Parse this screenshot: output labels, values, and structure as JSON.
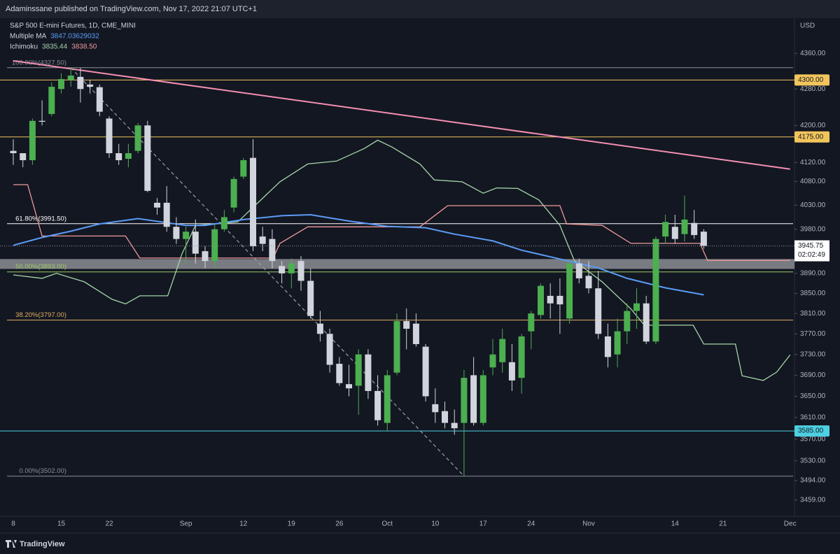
{
  "header": {
    "text": "Adaminssane published on TradingView.com, Nov 17, 2022 21:07 UTC+1"
  },
  "footer": {
    "brand": "TradingView"
  },
  "chart_data": {
    "type": "candlestick",
    "legend": [
      {
        "label": "S&P 500 E-mini Futures, 1D, CME_MINI"
      },
      {
        "label": "Multiple MA",
        "values": [
          {
            "text": "3847.03629032",
            "color": "#5b9cf6"
          }
        ]
      },
      {
        "label": "Ichimoku",
        "values": [
          {
            "text": "3835.44",
            "color": "#a5d6a7"
          },
          {
            "text": "3838.50",
            "color": "#ef9a9a"
          }
        ]
      }
    ],
    "y_unit": "USD",
    "categories": [
      "8",
      null,
      null,
      null,
      null,
      "15",
      null,
      null,
      null,
      null,
      "22",
      null,
      null,
      null,
      null,
      null,
      null,
      null,
      "Sep",
      null,
      null,
      null,
      null,
      null,
      "12",
      null,
      null,
      null,
      null,
      "19",
      null,
      null,
      null,
      null,
      "26",
      null,
      null,
      null,
      null,
      "Oct",
      null,
      null,
      null,
      null,
      "10",
      null,
      null,
      null,
      null,
      "17",
      null,
      null,
      null,
      null,
      "24",
      null,
      null,
      null,
      null,
      null,
      "Nov",
      null,
      null,
      null,
      null,
      null,
      null,
      null,
      null,
      "14",
      null,
      null,
      null,
      null,
      "21",
      null,
      null,
      null,
      null,
      null,
      null,
      "Dec"
    ],
    "open": [
      4145,
      4140,
      4125,
      4210,
      4225,
      4280,
      4300,
      4307,
      4290,
      4284,
      4215,
      4140,
      4128,
      4145,
      4200,
      4035,
      4035,
      3985,
      3960,
      3975,
      3935,
      3915,
      3980,
      4025,
      4090,
      4130,
      3965,
      3960,
      3905,
      3890,
      3915,
      3875,
      3790,
      3770,
      3712,
      3673,
      3670,
      3730,
      3660,
      3600,
      3695,
      3795,
      3790,
      3745,
      3635,
      3622,
      3600,
      3600,
      3690,
      3600,
      3705,
      3715,
      3715,
      3685,
      3775,
      3807,
      3845,
      3845,
      3800,
      3910,
      3885,
      3860,
      3765,
      3730,
      3775,
      3815,
      3830,
      3755,
      3965,
      3985,
      3970,
      3993,
      3975,
      null,
      null,
      null,
      null,
      null,
      null,
      null,
      null,
      null
    ],
    "high": [
      4170,
      4140,
      4215,
      4255,
      4295,
      4315,
      4327.5,
      4327,
      4300,
      4290,
      4220,
      4160,
      4160,
      4205,
      4210,
      4045,
      4070,
      4005,
      3985,
      4000,
      3945,
      3990,
      4020,
      4090,
      4130,
      4170,
      3985,
      3980,
      3915,
      3920,
      3925,
      3900,
      3815,
      3780,
      3725,
      3710,
      3740,
      3740,
      3690,
      3700,
      3810,
      3820,
      3810,
      3750,
      3665,
      3640,
      3625,
      3700,
      3725,
      3700,
      3760,
      3780,
      3750,
      3770,
      3815,
      3870,
      3870,
      3880,
      3915,
      3920,
      3915,
      3895,
      3790,
      3800,
      3830,
      3860,
      3845,
      3965,
      4010,
      4010,
      4050,
      4020,
      3980,
      null,
      null,
      null,
      null,
      null,
      null,
      null,
      null,
      null
    ],
    "low": [
      4115,
      4110,
      4115,
      4200,
      4220,
      4270,
      4285,
      4250,
      4270,
      4220,
      4130,
      4115,
      4110,
      4140,
      4057,
      4010,
      3975,
      3950,
      3910,
      3910,
      3900,
      3900,
      3975,
      4015,
      4085,
      3935,
      3935,
      3900,
      3870,
      3860,
      3855,
      3800,
      3755,
      3695,
      3670,
      3650,
      3615,
      3645,
      3595,
      3585,
      3690,
      3740,
      3745,
      3640,
      3600,
      3590,
      3578,
      3502,
      3595,
      3595,
      3690,
      3695,
      3660,
      3655,
      3740,
      3800,
      3800,
      3770,
      3790,
      3870,
      3850,
      3760,
      3705,
      3705,
      3750,
      3780,
      3750,
      3750,
      3950,
      3950,
      3955,
      3960,
      3940,
      null,
      null,
      null,
      null,
      null,
      null,
      null,
      null,
      null
    ],
    "close": [
      4140,
      4125,
      4210,
      4208,
      4285,
      4302,
      4310,
      4280,
      4285,
      4230,
      4140,
      4125,
      4140,
      4200,
      4060,
      4025,
      3985,
      3960,
      3975,
      3930,
      3915,
      3980,
      4005,
      4085,
      4125,
      3945,
      3950,
      3915,
      3890,
      3910,
      3875,
      3805,
      3770,
      3710,
      3675,
      3665,
      3730,
      3660,
      3605,
      3690,
      3795,
      3780,
      3750,
      3650,
      3620,
      3600,
      3590,
      3685,
      3600,
      3690,
      3730,
      3760,
      3680,
      3765,
      3810,
      3865,
      3830,
      3828,
      3910,
      3880,
      3860,
      3770,
      3725,
      3775,
      3815,
      3830,
      3755,
      3960,
      3995,
      3960,
      4000,
      3968,
      3945.75,
      null,
      null,
      null,
      null,
      null,
      null,
      null,
      null,
      null
    ],
    "up_color": "#4caf50",
    "down_color": "#d1d4dc",
    "ylim": [
      3430,
      4440
    ],
    "log_scale": true,
    "yticks": [
      {
        "value": 4360,
        "label": "4360.00"
      },
      {
        "value": 4280,
        "label": "4280.00"
      },
      {
        "value": 4200,
        "label": "4200.00"
      },
      {
        "value": 4120,
        "label": "4120.00"
      },
      {
        "value": 4080,
        "label": "4080.00"
      },
      {
        "value": 4030,
        "label": "4030.00"
      },
      {
        "value": 3980,
        "label": "3980.00"
      },
      {
        "value": 3890,
        "label": "3890.00"
      },
      {
        "value": 3850,
        "label": "3850.00"
      },
      {
        "value": 3810,
        "label": "3810.00"
      },
      {
        "value": 3770,
        "label": "3770.00"
      },
      {
        "value": 3730,
        "label": "3730.00"
      },
      {
        "value": 3690,
        "label": "3690.00"
      },
      {
        "value": 3650,
        "label": "3650.00"
      },
      {
        "value": 3610,
        "label": "3610.00"
      },
      {
        "value": 3570,
        "label": "3570.00"
      },
      {
        "value": 3530,
        "label": "3530.00"
      },
      {
        "value": 3494,
        "label": "3494.00"
      },
      {
        "value": 3459,
        "label": "3459.00"
      }
    ],
    "overlays": [
      {
        "color": "#a5d6a7",
        "width": 1.3,
        "x": [
          0,
          3,
          4.5,
          7.4,
          10.3,
          11.7,
          13.2,
          16.1,
          17.6,
          19,
          23.4,
          27.8,
          30.7,
          33.7,
          36.6,
          38,
          39.5,
          42.4,
          43.9,
          46.8,
          49,
          50.4,
          52.6,
          54.8,
          57,
          58.5,
          61.4,
          64.4,
          65.8,
          70.9,
          72,
          75.3,
          76,
          78.2,
          79.6,
          81
        ],
        "values": [
          3887,
          3880,
          3890,
          3873,
          3838,
          3829,
          3845,
          3845,
          3930,
          3988,
          3995,
          4079,
          4117,
          4123,
          4150,
          4168,
          4153,
          4117,
          4083,
          4079,
          4055,
          4066,
          4065,
          4041,
          3988,
          3916,
          3873,
          3819,
          3787,
          3787,
          3750,
          3750,
          3689,
          3680,
          3696,
          3729
        ]
      },
      {
        "color": "#ef9a9a",
        "width": 1.3,
        "x": [
          0,
          1.5,
          3,
          11.7,
          13.2,
          27.1,
          27.8,
          30.7,
          42.4,
          45.3,
          57,
          57.7,
          61.4,
          64.4,
          71.6,
          72.4,
          81
        ],
        "values": [
          4073,
          4073,
          3966,
          3966,
          3921,
          3921,
          3951,
          3985,
          3985,
          4029,
          4029,
          3991,
          3988,
          3951,
          3951,
          3916,
          3916
        ]
      },
      {
        "color": "#5b9cf6",
        "width": 2,
        "x": [
          0,
          3,
          6,
          9,
          13,
          18,
          20,
          24,
          28,
          31,
          35,
          39,
          43,
          46,
          50,
          53,
          57,
          61,
          64,
          68,
          72
        ],
        "values": [
          3947,
          3963,
          3976,
          3991,
          4002,
          3988,
          3988,
          4000,
          4008,
          4010,
          3997,
          3986,
          3983,
          3970,
          3956,
          3937,
          3919,
          3901,
          3880,
          3861,
          3847
        ]
      },
      {
        "color": "#f48fb1",
        "width": 2,
        "x": [
          0,
          81
        ],
        "values": [
          4343,
          4106
        ]
      },
      {
        "color": "#9aa0a6",
        "width": 1.2,
        "dash": true,
        "x": [
          6,
          47
        ],
        "values": [
          4327.5,
          3502
        ]
      }
    ],
    "fib_levels": [
      {
        "value": 4327.5,
        "label": "100.00%(4327.50)",
        "color": "#8a8f98"
      },
      {
        "value": 3991.5,
        "label": "61.80%(3991.50)",
        "color": "#ffffff"
      },
      {
        "value": 3893,
        "label": "50.00%(3893.00)",
        "color": "#9ccc65"
      },
      {
        "value": 3797,
        "label": "38.20%(3797.00)",
        "color": "#e0b060"
      },
      {
        "value": 3502,
        "label": "0.00%(3502.00)",
        "color": "#8a8f98"
      }
    ],
    "price_levels": [
      {
        "value": 4300,
        "label": "4300.00",
        "color": "#f2c55c"
      },
      {
        "value": 4175,
        "label": "4175.00",
        "color": "#f2c55c"
      },
      {
        "value": 3585,
        "label": "3585.00",
        "color": "#4dd0e1"
      }
    ],
    "zone": {
      "values": [
        3899,
        3919
      ],
      "color": "rgba(190,190,195,0.6)"
    },
    "last_price": {
      "value": 3945.75,
      "label": "3945.75",
      "countdown": "02:02:49"
    }
  }
}
